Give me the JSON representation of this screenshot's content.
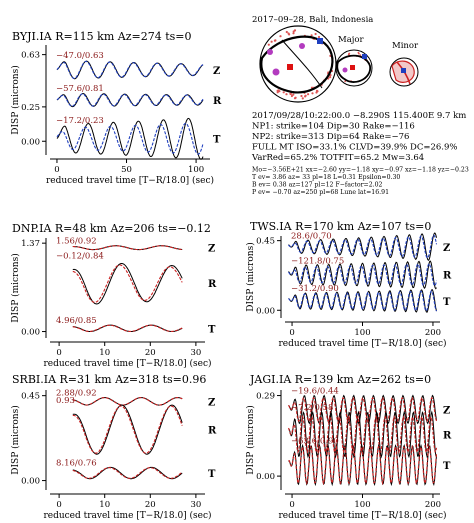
{
  "colors": {
    "observed": "#000000",
    "synthetic_z": "#1f3fbf",
    "synthetic_r": "#1f3fbf",
    "synthetic_alt": "#cc2222",
    "annotation": "#8b1a1a"
  },
  "event": {
    "header": "2017–09–28, Bali, Indonesia",
    "labels": {
      "major": "Major",
      "minor": "Minor"
    },
    "lines": [
      "2017/09/28/10:22:00.0 −8.290S 115.400E 9.7 km",
      "NP1: strike=104 Dip=30 Rake=−116",
      "NP2: strike=313 Dip=64 Rake=−76",
      "FULL MT ISO=33.1% CLVD=39.9% DC=26.9%",
      "VarRed=65.2% TOTFIT=65.2 Mw=3.64"
    ],
    "small_lines": [
      "Mo=−3.56E+21 xx=−2.60 yy=−1.18 xy=−0.97 xz=−1.18 yz=−0.23",
      "T ev= 3.86 az= 33 pl=18 L=0.31 Epsilon=0.30",
      "B ev= 0.38 az=127 pl=12 F−factor=2.02",
      "P ev= −0.70 az=250 pl=68 Lune lat=16.91"
    ]
  },
  "chart_data": [
    {
      "type": "line",
      "id": "byj",
      "title": "BYJI.IA R=115 km Az=274 ts=0",
      "xlabel": "reduced travel time [T−R/18.0] (sec)",
      "ylabel": "DISP (microns)",
      "xlim": [
        -5,
        110
      ],
      "ylim": [
        -0.1,
        0.7
      ],
      "xticks": [
        0,
        50,
        100
      ],
      "yticks": [
        0.63,
        0.25,
        0.0
      ],
      "components": [
        {
          "name": "Z",
          "annotation": "−47.0/0.63",
          "offset": 0.52,
          "amp": 0.07,
          "period": 17,
          "decay": 0.005,
          "syn_color": "#1f3fbf",
          "fit": 0.9
        },
        {
          "name": "R",
          "annotation": "−57.6/0.81",
          "offset": 0.3,
          "amp": 0.05,
          "period": 15,
          "decay": 0.003,
          "syn_color": "#1f3fbf",
          "fit": 0.85
        },
        {
          "name": "T",
          "annotation": "−17.2/0.23",
          "offset": 0.02,
          "amp": 0.1,
          "period": 18,
          "decay": -0.004,
          "syn_color": "#1f3fbf",
          "fit": 0.4
        }
      ]
    },
    {
      "type": "line",
      "id": "dnp",
      "title": "DNP.IA R=48 km Az=206 ts=−0.12",
      "xlabel": "reduced travel time [T−R/18.0] (sec)",
      "ylabel": "DISP (microns)",
      "xlim": [
        -2,
        32
      ],
      "ylim": [
        -0.1,
        1.45
      ],
      "xticks": [
        0,
        10,
        20,
        30
      ],
      "yticks": [
        1.37,
        0.0
      ],
      "components": [
        {
          "name": "Z",
          "annotation": "1.56/0.92",
          "offset": 1.3,
          "amp": 0.03,
          "period": 10,
          "decay": 0.0,
          "syn_color": "#cc2222",
          "fit": 0.95
        },
        {
          "name": "R",
          "annotation": "−0.12/0.84",
          "offset": 0.75,
          "amp": 0.35,
          "period": 11,
          "decay": 0.01,
          "syn_color": "#cc2222",
          "fit": 0.8
        },
        {
          "name": "T",
          "annotation": "4.96/0.85",
          "offset": 0.05,
          "amp": 0.05,
          "period": 9,
          "decay": 0.0,
          "syn_color": "#cc2222",
          "fit": 0.9
        }
      ]
    },
    {
      "type": "line",
      "id": "tws",
      "title": "TWS.IA R=170 km Az=107 ts=0",
      "xlabel": "reduced travel time [T−R/18.0] (sec)",
      "ylabel": "DISP (microns)",
      "xlim": [
        -10,
        210
      ],
      "ylim": [
        -0.05,
        0.48
      ],
      "xticks": [
        0,
        100,
        200
      ],
      "yticks": [
        0.45,
        0.0
      ],
      "components": [
        {
          "name": "Z",
          "annotation": "28.6/0.70",
          "offset": 0.41,
          "amp": 0.04,
          "period": 18,
          "decay": -0.004,
          "syn_color": "#1f3fbf",
          "fit": 0.6
        },
        {
          "name": "R",
          "annotation": "−121.8/0.75",
          "offset": 0.23,
          "amp": 0.06,
          "period": 16,
          "decay": -0.002,
          "syn_color": "#1f3fbf",
          "fit": 0.5
        },
        {
          "name": "T",
          "annotation": "−31.2/0.90",
          "offset": 0.06,
          "amp": 0.05,
          "period": 15,
          "decay": -0.002,
          "syn_color": "#1f3fbf",
          "fit": 0.7
        }
      ]
    },
    {
      "type": "line",
      "id": "srb",
      "title": "SRBI.IA R=31 km Az=318 ts=0.96",
      "xlabel": "reduced travel time [T−R/18.0] (sec)",
      "ylabel": "DISP (microns)",
      "xlim": [
        -2,
        32
      ],
      "ylim": [
        -0.05,
        0.48
      ],
      "xticks": [
        0,
        10,
        20,
        30
      ],
      "yticks": [
        0.45,
        0.0
      ],
      "components": [
        {
          "name": "Z",
          "annotation": "2.88/0.92",
          "offset": 0.42,
          "amp": 0.02,
          "period": 8,
          "decay": 0.0,
          "syn_color": "#cc2222",
          "fit": 0.95
        },
        {
          "name": "R",
          "annotation": "0.93",
          "offset": 0.27,
          "amp": 0.13,
          "period": 11,
          "decay": 0.0,
          "syn_color": "#cc2222",
          "fit": 0.9
        },
        {
          "name": "T",
          "annotation": "8.16/0.76",
          "offset": 0.04,
          "amp": 0.03,
          "period": 9,
          "decay": 0.0,
          "syn_color": "#cc2222",
          "fit": 0.85
        }
      ]
    },
    {
      "type": "line",
      "id": "jag",
      "title": "JAGI.IA R=139 km Az=262 ts=0",
      "xlabel": "reduced travel time [T−R/18.0] (sec)",
      "ylabel": "DISP (microns)",
      "xlim": [
        -10,
        210
      ],
      "ylim": [
        -0.05,
        0.31
      ],
      "xticks": [
        0,
        100,
        200
      ],
      "yticks": [
        0.29,
        0.0
      ],
      "components": [
        {
          "name": "Z",
          "annotation": "−19.6/0.44",
          "offset": 0.24,
          "amp": 0.05,
          "period": 14,
          "decay": 0.0,
          "syn_color": "#cc2222",
          "fit": 0.6
        },
        {
          "name": "R",
          "annotation": "−7.2/0.58",
          "offset": 0.15,
          "amp": 0.08,
          "period": 13,
          "decay": 0.0,
          "syn_color": "#cc2222",
          "fit": 0.5
        },
        {
          "name": "T",
          "annotation": "−63.6/0.90",
          "offset": 0.04,
          "amp": 0.07,
          "period": 12,
          "decay": 0.0,
          "syn_color": "#cc2222",
          "fit": 0.85
        }
      ]
    }
  ]
}
